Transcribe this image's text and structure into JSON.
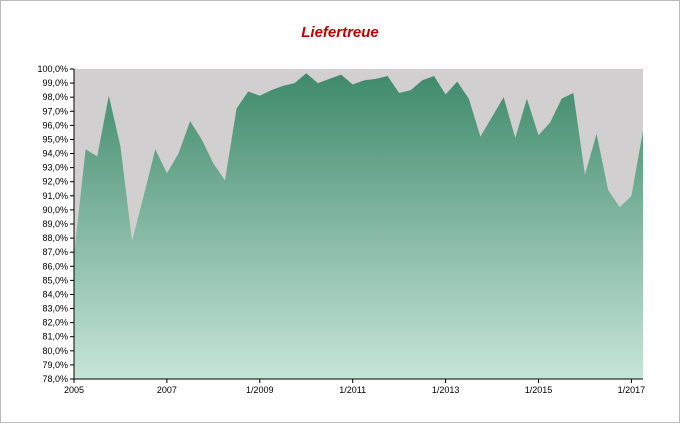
{
  "chart_data": {
    "type": "area",
    "title": "Liefertreue",
    "xlabel": "",
    "ylabel": "",
    "ylim": [
      78.0,
      100.0
    ],
    "ytick_step": 1.0,
    "ytick_labels": [
      "78,0%",
      "79,0%",
      "80,0%",
      "81,0%",
      "82,0%",
      "83,0%",
      "84,0%",
      "85,0%",
      "86,0%",
      "87,0%",
      "88,0%",
      "89,0%",
      "90,0%",
      "91,0%",
      "92,0%",
      "93,0%",
      "94,0%",
      "95,0%",
      "96,0%",
      "97,0%",
      "98,0%",
      "99,0%",
      "100,0%"
    ],
    "xtick_labels": [
      {
        "label": "2005",
        "index": 0
      },
      {
        "label": "2007",
        "index": 8
      },
      {
        "label": "1/2009",
        "index": 16
      },
      {
        "label": "1/2011",
        "index": 24
      },
      {
        "label": "1/2013",
        "index": 32
      },
      {
        "label": "1/2015",
        "index": 40
      },
      {
        "label": "1/2017",
        "index": 48
      }
    ],
    "grid": false,
    "legend": "none",
    "colors": {
      "area_top": "#3f8a6b",
      "area_bottom": "#c6e5d7",
      "plot_background": "#d2cfd1",
      "title": "#c00000"
    },
    "series": [
      {
        "values": [
          86.8,
          94.3,
          93.8,
          98.1,
          94.5,
          87.8,
          91.0,
          94.3,
          92.6,
          94.0,
          96.3,
          95.0,
          93.3,
          92.1,
          97.2,
          98.4,
          98.1,
          98.5,
          98.8,
          99.0,
          99.7,
          99.0,
          99.3,
          99.6,
          98.9,
          99.2,
          99.3,
          99.5,
          98.3,
          98.5,
          99.2,
          99.5,
          98.2,
          99.1,
          97.9,
          95.2,
          96.6,
          98.0,
          95.1,
          97.9,
          95.3,
          96.2,
          97.9,
          98.3,
          92.5,
          95.4,
          91.4,
          90.2,
          91.0,
          95.6
        ]
      }
    ]
  }
}
